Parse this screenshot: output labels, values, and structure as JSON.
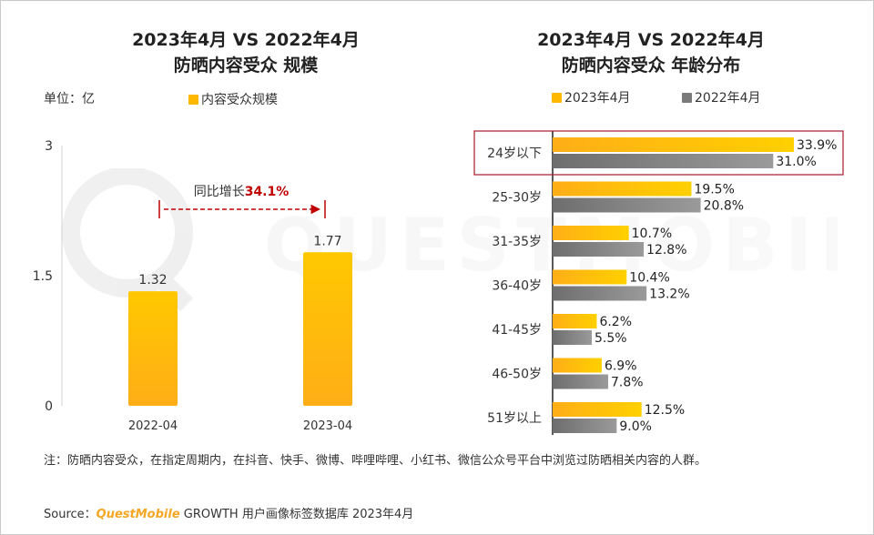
{
  "left_title_line1": "2023年4月 VS 2022年4月",
  "left_title_line2": "防晒内容受众 规模",
  "right_title_line1": "2023年4月 VS 2022年4月",
  "right_title_line2": "防晒内容受众 年龄分布",
  "unit_label": "单位：亿",
  "legend_left": "内容受众规模",
  "legend_right_2023": "2023年4月",
  "legend_right_2022": "2022年4月",
  "watermark_text": "QUESTMOBILE",
  "growth_prefix": "同比增长",
  "growth_value": "34.1%",
  "note": "注：防晒内容受众，在指定周期内，在抖音、快手、微博、哔哩哔哩、小红书、微信公众号平台中浏览过防晒相关内容的人群。",
  "source_prefix": "Source：",
  "source_brand": "QuestMobile",
  "source_rest": "GROWTH 用户画像标签数据库 2023年4月",
  "colors": {
    "gold": "#FFB800",
    "gray": "#7A7A7A",
    "red": "#C00000",
    "highlight": "#A61C2A"
  },
  "chart_data": [
    {
      "type": "bar",
      "title": "2023年4月 VS 2022年4月 防晒内容受众 规模",
      "categories": [
        "2022-04",
        "2023-04"
      ],
      "values": [
        1.32,
        1.77
      ],
      "value_labels": [
        "1.32",
        "1.77"
      ],
      "ylim": [
        0,
        3
      ],
      "yticks": [
        "0",
        "1.5",
        "3"
      ],
      "ylabel": "单位：亿",
      "legend": "内容受众规模"
    },
    {
      "type": "bar",
      "orientation": "horizontal",
      "title": "2023年4月 VS 2022年4月 防晒内容受众 年龄分布",
      "categories": [
        "24岁以下",
        "25-30岁",
        "31-35岁",
        "36-40岁",
        "41-45岁",
        "46-50岁",
        "51岁以上"
      ],
      "highlighted_category": "24岁以下",
      "series": [
        {
          "name": "2023年4月",
          "values": [
            33.9,
            19.5,
            10.7,
            10.4,
            6.2,
            6.9,
            12.5
          ],
          "labels": [
            "33.9%",
            "19.5%",
            "10.7%",
            "10.4%",
            "6.2%",
            "6.9%",
            "12.5%"
          ]
        },
        {
          "name": "2022年4月",
          "values": [
            31.0,
            20.8,
            12.8,
            13.2,
            5.5,
            7.8,
            9.0
          ],
          "labels": [
            "31.0%",
            "20.8%",
            "12.8%",
            "13.2%",
            "5.5%",
            "7.8%",
            "9.0%"
          ]
        }
      ],
      "xlim": [
        0,
        35
      ]
    }
  ]
}
